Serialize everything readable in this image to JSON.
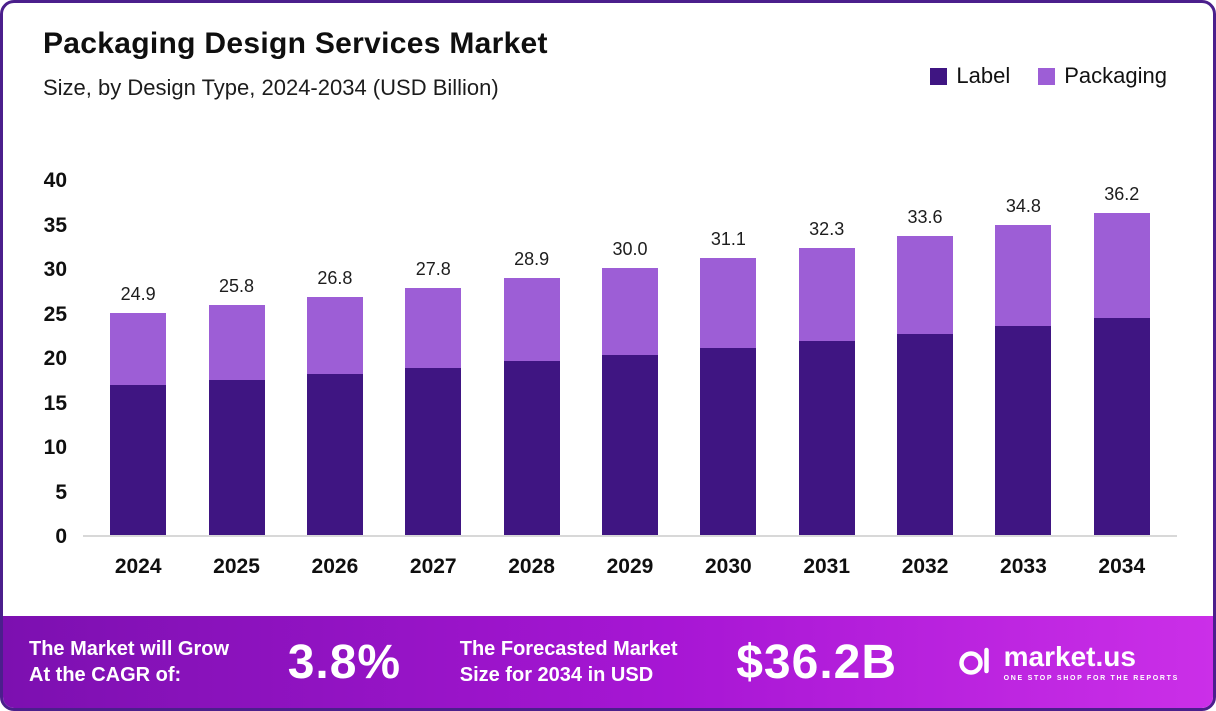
{
  "header": {
    "title": "Packaging Design Services Market",
    "subtitle": "Size, by Design Type, 2024-2034 (USD Billion)"
  },
  "legend": [
    {
      "label": "Label",
      "color": "#3f1582"
    },
    {
      "label": "Packaging",
      "color": "#9d5ed6"
    }
  ],
  "chart_data": {
    "type": "bar",
    "stacked": true,
    "title": "Packaging Design Services Market Size, by Design Type, 2024-2034 (USD Billion)",
    "categories": [
      "2024",
      "2025",
      "2026",
      "2027",
      "2028",
      "2029",
      "2030",
      "2031",
      "2032",
      "2033",
      "2034"
    ],
    "series": [
      {
        "name": "Label",
        "color": "#3f1582",
        "values": [
          16.8,
          17.4,
          18.1,
          18.8,
          19.5,
          20.2,
          21.0,
          21.8,
          22.6,
          23.5,
          24.4
        ]
      },
      {
        "name": "Packaging",
        "color": "#9d5ed6",
        "values": [
          8.1,
          8.4,
          8.7,
          9.0,
          9.4,
          9.8,
          10.1,
          10.5,
          11.0,
          11.3,
          11.8
        ]
      }
    ],
    "totals": [
      24.9,
      25.8,
      26.8,
      27.8,
      28.9,
      30.0,
      31.1,
      32.3,
      33.6,
      34.8,
      36.2
    ],
    "total_labels": [
      "24.9",
      "25.8",
      "26.8",
      "27.8",
      "28.9",
      "30.0",
      "31.1",
      "32.3",
      "33.6",
      "34.8",
      "36.2"
    ],
    "xlabel": "",
    "ylabel": "",
    "ylim": [
      0,
      40
    ],
    "yticks": [
      0,
      5,
      10,
      15,
      20,
      25,
      30,
      35,
      40
    ],
    "grid": false,
    "legend_position": "top-right"
  },
  "footer": {
    "cagr_line1": "The Market will Grow",
    "cagr_line2": "At the CAGR of:",
    "cagr_value": "3.8%",
    "forecast_line1": "The Forecasted Market",
    "forecast_line2": "Size for 2034 in USD",
    "forecast_value": "$36.2B",
    "brand": "market.us",
    "brand_tagline": "ONE STOP SHOP FOR THE REPORTS",
    "brand_logo_icon": "market-us-logo-icon"
  },
  "colors": {
    "label_series": "#3f1582",
    "packaging_series": "#9d5ed6",
    "frame_border": "#4b1f8c",
    "banner_gradient_start": "#7c10b0",
    "banner_gradient_mid": "#a716d4",
    "banner_gradient_end": "#cb2fe8",
    "axis_baseline": "#d8d8d8"
  }
}
